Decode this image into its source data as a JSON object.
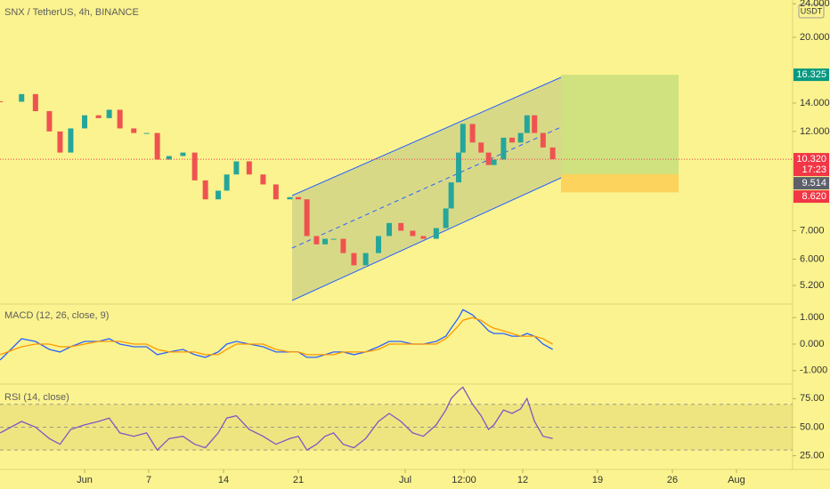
{
  "header": {
    "title": "SNX / TetherUS, 4h, BINANCE",
    "currency": "USDT"
  },
  "chart_data": [
    {
      "type": "candlestick",
      "scale": "log",
      "x": [
        -6.9,
        -4.9,
        -3.6,
        -2.3,
        -1.3,
        -0.3,
        1,
        2.3,
        3.3,
        4.3,
        5.6,
        6.8,
        7.8,
        8.9,
        10.2,
        11.3,
        12.3,
        13.5,
        14.3,
        15.2,
        16.4,
        17.7,
        18.9,
        20.2,
        21,
        21.8,
        22.7,
        23.5,
        24.3,
        25.2,
        26.2,
        27.3,
        28.5,
        29.5,
        30.6,
        31.7,
        32.7,
        33.9,
        34.8,
        35.3,
        36,
        36.4,
        37.3,
        38.1,
        38.8,
        39.3,
        40.2,
        41,
        41.8,
        42.4,
        43.1,
        43.9,
        44.8
      ],
      "close": [
        14.1,
        14.7,
        13.4,
        12.0,
        10.7,
        12.2,
        13.1,
        12.9,
        13.5,
        12.2,
        11.9,
        11.9,
        10.3,
        10.5,
        10.7,
        9.2,
        8.3,
        8.7,
        9.5,
        10.2,
        9.5,
        9.0,
        8.3,
        8.4,
        8.3,
        6.8,
        6.5,
        6.7,
        6.7,
        6.2,
        5.8,
        6.2,
        6.8,
        7.3,
        7.0,
        6.8,
        6.7,
        7.1,
        7.9,
        9.1,
        10.7,
        12.5,
        11.3,
        10.7,
        10.0,
        10.3,
        11.6,
        11.3,
        11.9,
        13.1,
        11.9,
        11.0,
        10.32
      ],
      "up_color": "#26a69a",
      "down_color": "#ef5350",
      "xlim": [
        -6.92,
        67.25
      ],
      "xticks": [
        {
          "value": 1,
          "label": "Jun"
        },
        7,
        14,
        21,
        {
          "value": 31,
          "label": "Jul"
        },
        {
          "value": 36.5,
          "label": "12:00"
        },
        {
          "value": 42,
          "label": "12"
        },
        {
          "value": 49,
          "label": "19"
        },
        {
          "value": 56,
          "label": "26"
        },
        {
          "value": 62,
          "label": "Aug"
        }
      ],
      "ylim": [
        4.7,
        24.5
      ],
      "yticks": [
        {
          "value": 24,
          "label": "24.000"
        },
        {
          "value": 20,
          "label": "20.000"
        },
        {
          "value": 14,
          "label": "14.000"
        },
        {
          "value": 12,
          "label": "12.000"
        },
        {
          "value": 7,
          "label": "7.000"
        },
        {
          "value": 6,
          "label": "6.000"
        },
        {
          "value": 5.2,
          "label": "5.200"
        }
      ],
      "price_labels": [
        {
          "value": 16.325,
          "label": "16.325",
          "color": "#089981"
        },
        {
          "value": 10.32,
          "label": "10.320",
          "color": "#f23645"
        },
        {
          "value": 9.514,
          "label": "9.514",
          "color": "#5d606b"
        },
        {
          "value": 8.62,
          "label": "8.620",
          "color": "#f23645"
        }
      ],
      "countdown": "17:23"
    },
    {
      "type": "line",
      "title": "MACD (12, 26, close, 9)",
      "series": [
        {
          "color": "#2962ff",
          "values": [
            -0.6,
            0.2,
            0.1,
            -0.2,
            -0.3,
            -0.1,
            0.1,
            0.1,
            0.2,
            0.0,
            -0.1,
            -0.1,
            -0.4,
            -0.3,
            -0.2,
            -0.4,
            -0.5,
            -0.3,
            0.0,
            0.1,
            0.0,
            -0.1,
            -0.3,
            -0.3,
            -0.3,
            -0.5,
            -0.5,
            -0.4,
            -0.3,
            -0.3,
            -0.4,
            -0.3,
            -0.1,
            0.1,
            0.1,
            0.0,
            0.0,
            0.1,
            0.3,
            0.6,
            1.0,
            1.3,
            1.1,
            0.8,
            0.5,
            0.4,
            0.4,
            0.3,
            0.3,
            0.4,
            0.3,
            0.0,
            -0.2
          ]
        },
        {
          "color": "#ff9800",
          "values": [
            -0.4,
            -0.1,
            0.0,
            0.0,
            -0.1,
            -0.1,
            0.0,
            0.1,
            0.1,
            0.1,
            0.0,
            0.0,
            -0.2,
            -0.3,
            -0.3,
            -0.3,
            -0.4,
            -0.4,
            -0.2,
            0.0,
            0.0,
            0.0,
            -0.2,
            -0.3,
            -0.3,
            -0.4,
            -0.4,
            -0.4,
            -0.4,
            -0.3,
            -0.3,
            -0.3,
            -0.2,
            0.0,
            0.0,
            0.0,
            0.0,
            0.0,
            0.2,
            0.4,
            0.7,
            0.9,
            1.0,
            0.9,
            0.7,
            0.6,
            0.5,
            0.4,
            0.3,
            0.3,
            0.3,
            0.2,
            0.0
          ]
        }
      ],
      "ylim": [
        -1.51,
        1.51
      ],
      "yticks": [
        {
          "value": 1,
          "label": "1.000"
        },
        {
          "value": 0,
          "label": "0.000"
        },
        {
          "value": -1,
          "label": "-1.000"
        }
      ]
    },
    {
      "type": "line",
      "title": "RSI (14, close)",
      "series": [
        {
          "color": "#7e57c2",
          "values": [
            45,
            55,
            50,
            40,
            35,
            48,
            52,
            55,
            58,
            45,
            42,
            45,
            30,
            40,
            42,
            35,
            32,
            45,
            58,
            60,
            48,
            42,
            35,
            40,
            42,
            30,
            35,
            42,
            45,
            35,
            32,
            40,
            55,
            62,
            55,
            45,
            42,
            52,
            65,
            75,
            82,
            85,
            70,
            60,
            48,
            52,
            65,
            62,
            66,
            75,
            55,
            42,
            40
          ]
        }
      ],
      "levels": [
        70,
        50,
        30
      ],
      "ylim": [
        13,
        87.7
      ],
      "yticks": [
        {
          "value": 75,
          "label": "75.00"
        },
        {
          "value": 50,
          "label": "50.00"
        },
        {
          "value": 25,
          "label": "25.00"
        }
      ]
    }
  ]
}
